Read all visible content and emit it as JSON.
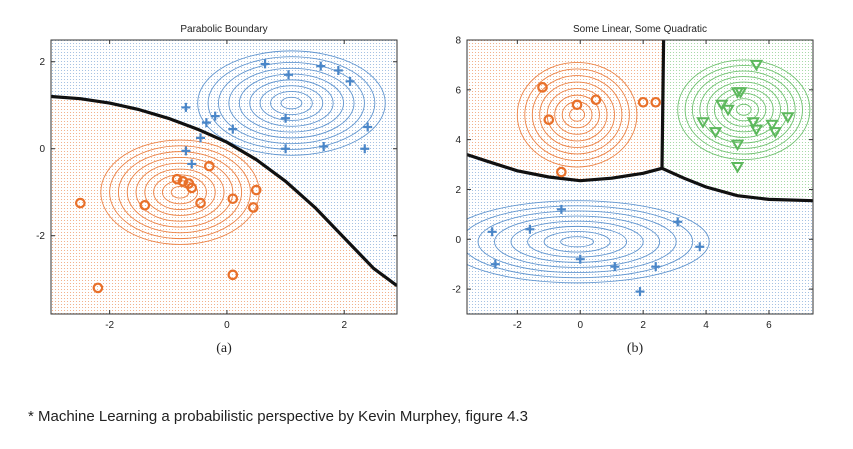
{
  "caption": "* Machine Learning a probabilistic perspective by Kevin Murphey, figure 4.3",
  "colors": {
    "orange": "#e8702a",
    "blue": "#4a86c8",
    "green": "#5cb85c",
    "boundary": "#111111"
  },
  "chart_data": [
    {
      "type": "scatter",
      "title": "Parabolic Boundary",
      "panel_label": "(a)",
      "xlim": [
        -3,
        2.9
      ],
      "ylim": [
        -3.8,
        2.5
      ],
      "xticks": [
        "-2",
        "0",
        "2"
      ],
      "xtick_values": [
        -2,
        0,
        2
      ],
      "yticks": [
        "2",
        "0",
        "-2"
      ],
      "ytick_values": [
        2,
        0,
        -2
      ],
      "series": [
        {
          "marker": "circle",
          "color": "orange",
          "points": [
            [
              -2.5,
              -1.25
            ],
            [
              -2.2,
              -3.2
            ],
            [
              -1.4,
              -1.3
            ],
            [
              -0.85,
              -0.7
            ],
            [
              -0.75,
              -0.75
            ],
            [
              -0.65,
              -0.8
            ],
            [
              -0.6,
              -0.9
            ],
            [
              -0.45,
              -1.25
            ],
            [
              -0.3,
              -0.4
            ],
            [
              0.1,
              -1.15
            ],
            [
              0.45,
              -1.35
            ],
            [
              0.5,
              -0.95
            ],
            [
              0.1,
              -2.9
            ]
          ]
        },
        {
          "marker": "plus",
          "color": "blue",
          "points": [
            [
              -0.7,
              0.95
            ],
            [
              -0.35,
              0.6
            ],
            [
              -0.2,
              0.75
            ],
            [
              0.1,
              0.45
            ],
            [
              -0.7,
              -0.05
            ],
            [
              -0.6,
              -0.35
            ],
            [
              -0.45,
              0.25
            ],
            [
              0.65,
              1.95
            ],
            [
              1.05,
              1.7
            ],
            [
              1.0,
              0.7
            ],
            [
              1.6,
              1.9
            ],
            [
              1.9,
              1.8
            ],
            [
              2.1,
              1.55
            ],
            [
              2.4,
              0.5
            ],
            [
              1.0,
              0.0
            ],
            [
              1.65,
              0.05
            ],
            [
              2.35,
              0.0
            ]
          ]
        }
      ],
      "contours": [
        {
          "color": "orange",
          "center": [
            -0.8,
            -1.0
          ],
          "sx": 1.35,
          "sy": 1.2,
          "levels": 9
        },
        {
          "color": "blue",
          "center": [
            1.1,
            1.05
          ],
          "sx": 1.6,
          "sy": 1.2,
          "levels": 9
        }
      ],
      "boundary": [
        [
          -3,
          1.2
        ],
        [
          -2.5,
          1.15
        ],
        [
          -2,
          1.05
        ],
        [
          -1.5,
          0.9
        ],
        [
          -1,
          0.7
        ],
        [
          -0.5,
          0.45
        ],
        [
          0,
          0.15
        ],
        [
          0.5,
          -0.25
        ],
        [
          1,
          -0.75
        ],
        [
          1.5,
          -1.35
        ],
        [
          2,
          -2.05
        ],
        [
          2.5,
          -2.75
        ],
        [
          2.9,
          -3.15
        ]
      ]
    },
    {
      "type": "scatter",
      "title": "Some Linear, Some Quadratic",
      "panel_label": "(b)",
      "xlim": [
        -3.6,
        7.4
      ],
      "ylim": [
        -3,
        8
      ],
      "xticks": [
        "-2",
        "0",
        "2",
        "4",
        "6"
      ],
      "xtick_values": [
        -2,
        0,
        2,
        4,
        6
      ],
      "yticks": [
        "8",
        "6",
        "4",
        "2",
        "0",
        "-2"
      ],
      "ytick_values": [
        8,
        6,
        4,
        2,
        0,
        -2
      ],
      "series": [
        {
          "marker": "circle",
          "color": "orange",
          "points": [
            [
              -1.2,
              6.1
            ],
            [
              -1.0,
              4.8
            ],
            [
              -0.1,
              5.4
            ],
            [
              0.5,
              5.6
            ],
            [
              2.0,
              5.5
            ],
            [
              2.4,
              5.5
            ],
            [
              -0.6,
              2.7
            ]
          ]
        },
        {
          "marker": "plus",
          "color": "blue",
          "points": [
            [
              -2.8,
              0.3
            ],
            [
              -2.7,
              -1.0
            ],
            [
              -1.6,
              0.4
            ],
            [
              -0.6,
              1.2
            ],
            [
              0.0,
              -0.8
            ],
            [
              1.1,
              -1.1
            ],
            [
              2.4,
              -1.1
            ],
            [
              3.1,
              0.7
            ],
            [
              3.8,
              -0.3
            ],
            [
              1.9,
              -2.1
            ]
          ]
        },
        {
          "marker": "triangle",
          "color": "green",
          "points": [
            [
              3.9,
              4.7
            ],
            [
              4.3,
              4.3
            ],
            [
              4.5,
              5.4
            ],
            [
              5.0,
              5.9
            ],
            [
              5.1,
              5.9
            ],
            [
              4.7,
              5.2
            ],
            [
              5.0,
              3.8
            ],
            [
              5.5,
              4.7
            ],
            [
              5.6,
              4.4
            ],
            [
              6.1,
              4.6
            ],
            [
              6.2,
              4.3
            ],
            [
              6.6,
              4.9
            ],
            [
              5.6,
              7.0
            ],
            [
              5.0,
              2.9
            ]
          ]
        }
      ],
      "contours": [
        {
          "color": "orange",
          "center": [
            -0.1,
            5.0
          ],
          "sx": 1.9,
          "sy": 2.1,
          "levels": 8
        },
        {
          "color": "blue",
          "center": [
            -0.1,
            -0.1
          ],
          "sx": 4.2,
          "sy": 1.65,
          "levels": 8
        },
        {
          "color": "green",
          "center": [
            5.2,
            5.2
          ],
          "sx": 2.1,
          "sy": 2.0,
          "levels": 9
        }
      ],
      "regions": [
        {
          "color": "orange",
          "polygon": [
            [
              -3.6,
              8
            ],
            [
              2.6,
              8
            ],
            [
              2.6,
              2.85
            ],
            [
              1.5,
              2.55
            ],
            [
              0,
              2.35
            ],
            [
              -1.5,
              2.55
            ],
            [
              -3.6,
              3.4
            ]
          ]
        },
        {
          "color": "green",
          "polygon": [
            [
              2.6,
              8
            ],
            [
              7.4,
              8
            ],
            [
              7.4,
              1.55
            ],
            [
              5.5,
              1.6
            ],
            [
              4,
              2.1
            ],
            [
              2.6,
              2.85
            ]
          ]
        },
        {
          "color": "blue",
          "polygon": [
            [
              -3.6,
              3.4
            ],
            [
              -1.5,
              2.55
            ],
            [
              0,
              2.35
            ],
            [
              1.5,
              2.55
            ],
            [
              2.6,
              2.85
            ],
            [
              4,
              2.1
            ],
            [
              5.5,
              1.6
            ],
            [
              7.4,
              1.55
            ],
            [
              7.4,
              -3
            ],
            [
              -3.6,
              -3
            ]
          ]
        }
      ],
      "boundaries": [
        [
          [
            -3.6,
            3.4
          ],
          [
            -3,
            3.15
          ],
          [
            -2,
            2.75
          ],
          [
            -1,
            2.5
          ],
          [
            0,
            2.35
          ],
          [
            1,
            2.45
          ],
          [
            2,
            2.65
          ],
          [
            2.6,
            2.85
          ]
        ],
        [
          [
            2.6,
            2.85
          ],
          [
            3.3,
            2.45
          ],
          [
            4,
            2.1
          ],
          [
            5,
            1.75
          ],
          [
            6,
            1.6
          ],
          [
            7.4,
            1.55
          ]
        ],
        [
          [
            2.6,
            2.85
          ],
          [
            2.65,
            8
          ]
        ]
      ]
    }
  ]
}
